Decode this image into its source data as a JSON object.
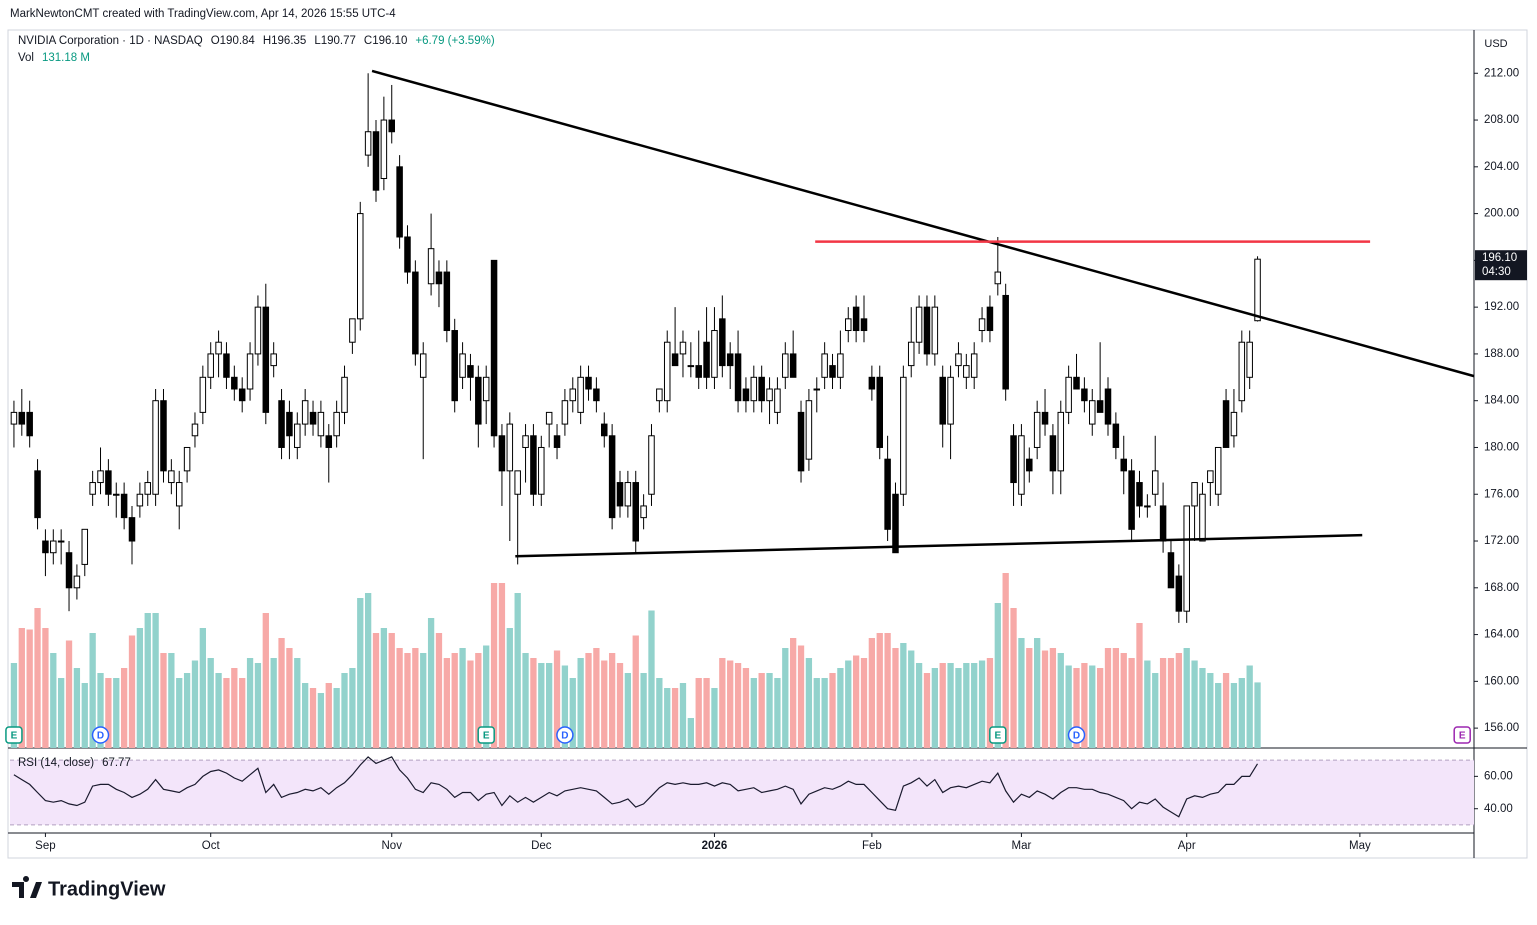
{
  "header": "MarkNewtonCMT created with TradingView.com, Apr 14, 2026 15:55 UTC-4",
  "footer": "TradingView",
  "chart_data": {
    "type": "candlestick",
    "symbol": "NVIDIA Corporation · 1D · NASDAQ",
    "legend": [
      "O190.84",
      "H196.35",
      "L190.77",
      "C196.10",
      "+6.79 (+3.59%)"
    ],
    "currency": "USD",
    "last_label": "196.10",
    "countdown": "04:30",
    "up_color": "#ffffff",
    "down_color": "#000000",
    "ylim": [
      154.3,
      215.7
    ],
    "yticks": [
      {
        "value": 156,
        "label": "156.00"
      },
      {
        "value": 160,
        "label": "160.00"
      },
      {
        "value": 164,
        "label": "164.00"
      },
      {
        "value": 168,
        "label": "168.00"
      },
      {
        "value": 172,
        "label": "172.00"
      },
      {
        "value": 176,
        "label": "176.00"
      },
      {
        "value": 180,
        "label": "180.00"
      },
      {
        "value": 184,
        "label": "184.00"
      },
      {
        "value": 188,
        "label": "188.00"
      },
      {
        "value": 192,
        "label": "192.00"
      },
      {
        "value": 196,
        "label": "196.00"
      },
      {
        "value": 200,
        "label": "200.00"
      },
      {
        "value": 204,
        "label": "204.00"
      },
      {
        "value": 208,
        "label": "208.00"
      },
      {
        "value": 212,
        "label": "212.00"
      }
    ],
    "xlim": [
      -0.5,
      185.5
    ],
    "xticks": [
      {
        "value": 4,
        "label": "Sep"
      },
      {
        "value": 25,
        "label": "Oct"
      },
      {
        "value": 48,
        "label": "Nov"
      },
      {
        "value": 67,
        "label": "Dec"
      },
      {
        "value": 89,
        "label": "2026"
      },
      {
        "value": 109,
        "label": "Feb"
      },
      {
        "value": 128,
        "label": "Mar"
      },
      {
        "value": 149,
        "label": "Apr"
      },
      {
        "value": 171,
        "label": "May"
      }
    ],
    "ohlc": [
      [
        182,
        184,
        180,
        183
      ],
      [
        183,
        185,
        181,
        182
      ],
      [
        183,
        184,
        180,
        181
      ],
      [
        178,
        179,
        173,
        174
      ],
      [
        172,
        173,
        169,
        171
      ],
      [
        171,
        173,
        170,
        172
      ],
      [
        172,
        173,
        170,
        172
      ],
      [
        171,
        172,
        166,
        168
      ],
      [
        168,
        170,
        167,
        169
      ],
      [
        170,
        173,
        169,
        173
      ],
      [
        176,
        178,
        175,
        177
      ],
      [
        177,
        180,
        176,
        178
      ],
      [
        178,
        179,
        175,
        176
      ],
      [
        176,
        177,
        174,
        176
      ],
      [
        176,
        177,
        173,
        174
      ],
      [
        174,
        175,
        170,
        172
      ],
      [
        175,
        177,
        174,
        176
      ],
      [
        176,
        178,
        175,
        177
      ],
      [
        176,
        185,
        175,
        184
      ],
      [
        184,
        185,
        177,
        178
      ],
      [
        177,
        179,
        176,
        178
      ],
      [
        175,
        178,
        173,
        177
      ],
      [
        178,
        180,
        177,
        180
      ],
      [
        181,
        183,
        180,
        182
      ],
      [
        183,
        187,
        182,
        186
      ],
      [
        186,
        189,
        185,
        188
      ],
      [
        188,
        190,
        186,
        189
      ],
      [
        188,
        189,
        185,
        186
      ],
      [
        186,
        187,
        184,
        185
      ],
      [
        185,
        186,
        183,
        184
      ],
      [
        185,
        189,
        184,
        188
      ],
      [
        188,
        193,
        187,
        192
      ],
      [
        192,
        194,
        182,
        183
      ],
      [
        187,
        189,
        186,
        188
      ],
      [
        184,
        185,
        179,
        180
      ],
      [
        183,
        184,
        179,
        181
      ],
      [
        180,
        183,
        179,
        182
      ],
      [
        182,
        185,
        181,
        184
      ],
      [
        183,
        184,
        181,
        182
      ],
      [
        181,
        184,
        180,
        183
      ],
      [
        181,
        182,
        177,
        180
      ],
      [
        181,
        184,
        180,
        183
      ],
      [
        183,
        187,
        182,
        186
      ],
      [
        189,
        191,
        188,
        191
      ],
      [
        191,
        201,
        190,
        200
      ],
      [
        205,
        212,
        204,
        207
      ],
      [
        207,
        208,
        201,
        202
      ],
      [
        203,
        210,
        202,
        208
      ],
      [
        208,
        211,
        206,
        207
      ],
      [
        204,
        205,
        197,
        198
      ],
      [
        198,
        199,
        194,
        195
      ],
      [
        195,
        196,
        187,
        188
      ],
      [
        186,
        189,
        179,
        188
      ],
      [
        194,
        200,
        193,
        197
      ],
      [
        195,
        196,
        192,
        194
      ],
      [
        195,
        196,
        189,
        190
      ],
      [
        190,
        191,
        183,
        184
      ],
      [
        186,
        189,
        185,
        188
      ],
      [
        187,
        188,
        184,
        186
      ],
      [
        186,
        187,
        180,
        182
      ],
      [
        184,
        187,
        182,
        186
      ],
      [
        196,
        196,
        180,
        181
      ],
      [
        181,
        182,
        175,
        178
      ],
      [
        178,
        183,
        172,
        182
      ],
      [
        176,
        178,
        170,
        178
      ],
      [
        180,
        182,
        177,
        181
      ],
      [
        181,
        182,
        175,
        176
      ],
      [
        176,
        181,
        175,
        180
      ],
      [
        182,
        183,
        180,
        183
      ],
      [
        181,
        182,
        179,
        180
      ],
      [
        182,
        185,
        181,
        184
      ],
      [
        184,
        186,
        183,
        185
      ],
      [
        183,
        187,
        182,
        186
      ],
      [
        186,
        187,
        184,
        185
      ],
      [
        185,
        186,
        183,
        184
      ],
      [
        182,
        183,
        180,
        181
      ],
      [
        181,
        182,
        173,
        174
      ],
      [
        177,
        178,
        174,
        175
      ],
      [
        175,
        178,
        174,
        177
      ],
      [
        177,
        178,
        171,
        172
      ],
      [
        174,
        176,
        173,
        175
      ],
      [
        176,
        182,
        175,
        181
      ],
      [
        184,
        185,
        183,
        185
      ],
      [
        184,
        190,
        183,
        189
      ],
      [
        188,
        192,
        187,
        187
      ],
      [
        188,
        190,
        186,
        189
      ],
      [
        187,
        189,
        186,
        187
      ],
      [
        187,
        190,
        185,
        186
      ],
      [
        189,
        192,
        185,
        186
      ],
      [
        186,
        192,
        185,
        190
      ],
      [
        191,
        193,
        186,
        187
      ],
      [
        188,
        189,
        185,
        187
      ],
      [
        188,
        190,
        183,
        184
      ],
      [
        185,
        186,
        183,
        184
      ],
      [
        184,
        187,
        183,
        186
      ],
      [
        186,
        187,
        183,
        184
      ],
      [
        184,
        186,
        182,
        185
      ],
      [
        183,
        186,
        182,
        185
      ],
      [
        186,
        189,
        185,
        188
      ],
      [
        188,
        190,
        186,
        186
      ],
      [
        183,
        184,
        177,
        178
      ],
      [
        179,
        185,
        178,
        184
      ],
      [
        185,
        186,
        183,
        185
      ],
      [
        186,
        189,
        185,
        188
      ],
      [
        187,
        188,
        185,
        186
      ],
      [
        186,
        190,
        185,
        188
      ],
      [
        190,
        192,
        189,
        191
      ],
      [
        192,
        193,
        189,
        190
      ],
      [
        191,
        193,
        189,
        190
      ],
      [
        186,
        187,
        184,
        185
      ],
      [
        186,
        187,
        179,
        180
      ],
      [
        179,
        181,
        172,
        173
      ],
      [
        176,
        177,
        171,
        171
      ],
      [
        176,
        187,
        175,
        186
      ],
      [
        187,
        192,
        186,
        189
      ],
      [
        189,
        193,
        188,
        192
      ],
      [
        192,
        193,
        187,
        188
      ],
      [
        188,
        193,
        187,
        192
      ],
      [
        186,
        187,
        180,
        182
      ],
      [
        182,
        187,
        179,
        186
      ],
      [
        187,
        189,
        186,
        188
      ],
      [
        186,
        188,
        185,
        187
      ],
      [
        186,
        189,
        185,
        188
      ],
      [
        190,
        192,
        189,
        191
      ],
      [
        192,
        193,
        189,
        190
      ],
      [
        194,
        198,
        193,
        195
      ],
      [
        193,
        194,
        184,
        185
      ],
      [
        181,
        182,
        175,
        177
      ],
      [
        176,
        182,
        175,
        181
      ],
      [
        179,
        180,
        177,
        178
      ],
      [
        180,
        184,
        179,
        183
      ],
      [
        183,
        185,
        181,
        182
      ],
      [
        181,
        182,
        176,
        178
      ],
      [
        178,
        184,
        176,
        183
      ],
      [
        183,
        187,
        182,
        186
      ],
      [
        186,
        188,
        185,
        185
      ],
      [
        185,
        186,
        183,
        184
      ],
      [
        182,
        185,
        181,
        184
      ],
      [
        184,
        189,
        183,
        183
      ],
      [
        185,
        186,
        181,
        182
      ],
      [
        182,
        183,
        179,
        180
      ],
      [
        179,
        181,
        176,
        178
      ],
      [
        178,
        179,
        172,
        173
      ],
      [
        177,
        178,
        174,
        175
      ],
      [
        175,
        176,
        174,
        175
      ],
      [
        176,
        181,
        175,
        178
      ],
      [
        175,
        177,
        171,
        172
      ],
      [
        171,
        172,
        168,
        168
      ],
      [
        169,
        170,
        165,
        166
      ],
      [
        166,
        175,
        165,
        175
      ],
      [
        175,
        177,
        172,
        177
      ],
      [
        172,
        177,
        172,
        176
      ],
      [
        177,
        178,
        175,
        178
      ],
      [
        176,
        180,
        175,
        180
      ],
      [
        184,
        185,
        180,
        180
      ],
      [
        181,
        185,
        180,
        183
      ],
      [
        184,
        190,
        183,
        189
      ],
      [
        186,
        190,
        185,
        189
      ],
      [
        190.84,
        196.35,
        190.77,
        196.1
      ]
    ],
    "volume": {
      "name": "Vol",
      "label": "131.18 M",
      "up_color": "#92d2cc",
      "down_color": "#f7a9a7",
      "values": [
        170,
        240,
        237,
        280,
        240,
        190,
        140,
        215,
        160,
        130,
        230,
        150,
        140,
        140,
        160,
        225,
        240,
        270,
        270,
        190,
        190,
        140,
        150,
        175,
        240,
        180,
        150,
        140,
        160,
        140,
        180,
        170,
        270,
        180,
        220,
        200,
        180,
        130,
        120,
        110,
        130,
        120,
        150,
        160,
        300,
        310,
        230,
        240,
        230,
        200,
        190,
        200,
        190,
        260,
        230,
        180,
        190,
        200,
        175,
        190,
        205,
        330,
        330,
        240,
        310,
        190,
        180,
        170,
        170,
        195,
        165,
        140,
        180,
        190,
        200,
        175,
        190,
        170,
        150,
        225,
        150,
        275,
        140,
        120,
        120,
        130,
        60,
        140,
        140,
        120,
        180,
        175,
        170,
        160,
        140,
        150,
        150,
        140,
        200,
        220,
        205,
        180,
        140,
        140,
        150,
        160,
        175,
        185,
        180,
        220,
        230,
        230,
        200,
        210,
        195,
        170,
        150,
        160,
        170,
        170,
        160,
        170,
        170,
        175,
        180,
        290,
        350,
        280,
        220,
        200,
        220,
        195,
        200,
        190,
        165,
        160,
        170,
        165,
        160,
        200,
        200,
        190,
        180,
        250,
        175,
        150,
        180,
        180,
        190,
        200,
        175,
        160,
        150,
        130,
        150,
        130,
        140,
        165,
        131.18
      ]
    },
    "rsi": {
      "name": "RSI (14, close)",
      "label": "67.77",
      "color": "#1a1a2e",
      "band": [
        30,
        70
      ],
      "band_color": "#f3e5fa",
      "ylim": [
        25,
        76.9
      ],
      "yticks": [
        {
          "value": 60,
          "label": "60.00"
        },
        {
          "value": 40,
          "label": "40.00"
        }
      ],
      "values": [
        61,
        58,
        55,
        50,
        45,
        44,
        45,
        43,
        42,
        44,
        54,
        55,
        55,
        52,
        50,
        47,
        49,
        52,
        58,
        52,
        51,
        50,
        53,
        55,
        60,
        63,
        64,
        62,
        59,
        57,
        61,
        65,
        50,
        55,
        47,
        49,
        50,
        52,
        51,
        53,
        49,
        53,
        56,
        61,
        67,
        72,
        68,
        70,
        72,
        64,
        59,
        52,
        50,
        56,
        55,
        52,
        47,
        50,
        50,
        45,
        49,
        50,
        42,
        48,
        44,
        47,
        44,
        47,
        50,
        48,
        51,
        52,
        53,
        52,
        51,
        47,
        43,
        44,
        46,
        41,
        43,
        48,
        53,
        56,
        55,
        56,
        55,
        55,
        56,
        54,
        56,
        55,
        51,
        52,
        53,
        50,
        51,
        52,
        54,
        52,
        43,
        49,
        51,
        53,
        52,
        54,
        57,
        55,
        55,
        50,
        45,
        40,
        39,
        54,
        56,
        59,
        54,
        58,
        50,
        53,
        54,
        53,
        55,
        57,
        56,
        62,
        51,
        44,
        49,
        47,
        51,
        49,
        46,
        50,
        53,
        53,
        52,
        52,
        50,
        49,
        47,
        45,
        40,
        44,
        43,
        46,
        41,
        38,
        35,
        46,
        48,
        47,
        49,
        50,
        55,
        55,
        60,
        60,
        67.77
      ]
    },
    "trendlines": [
      {
        "from": [
          45.5,
          212.2
        ],
        "to": [
          185.5,
          186.1
        ],
        "color": "#000000"
      },
      {
        "from": [
          63.7,
          170.7
        ],
        "to": [
          171.3,
          172.5
        ],
        "color": "#000000"
      },
      {
        "from": [
          101.8,
          197.6
        ],
        "to": [
          172.3,
          197.6
        ],
        "color": "#f23645"
      }
    ],
    "events": [
      {
        "at": 0,
        "label": "E",
        "color": "#089981"
      },
      {
        "at": 11,
        "label": "D",
        "color": "#2962ff"
      },
      {
        "at": 60,
        "label": "E",
        "color": "#089981"
      },
      {
        "at": 70,
        "label": "D",
        "color": "#2962ff"
      },
      {
        "at": 125,
        "label": "E",
        "color": "#089981"
      },
      {
        "at": 135,
        "label": "D",
        "color": "#2962ff"
      },
      {
        "at": 184,
        "label": "E",
        "color": "#9c27b0"
      }
    ]
  }
}
